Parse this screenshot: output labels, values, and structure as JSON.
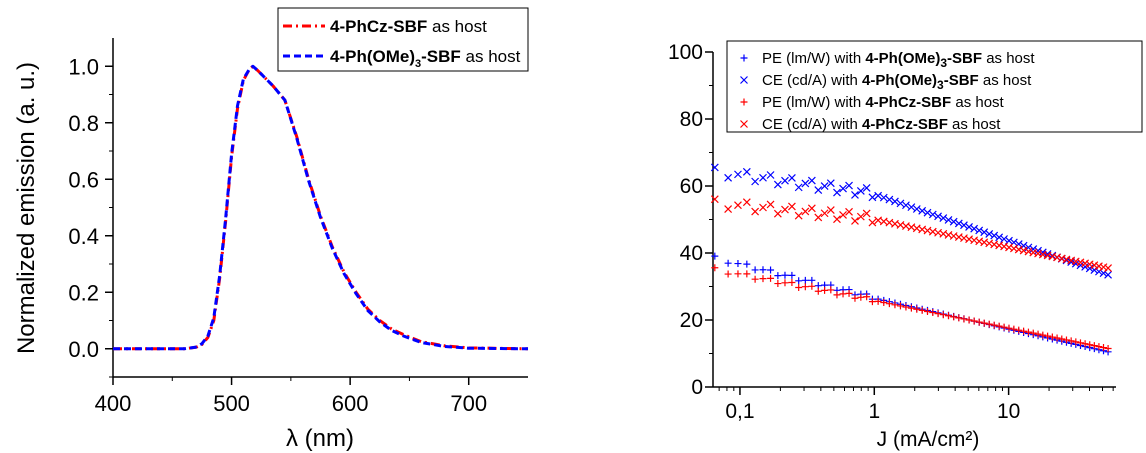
{
  "chart_data": [
    {
      "type": "line",
      "xlabel": "λ (nm)",
      "ylabel": "Normalized emission (a. u.)",
      "xlim": [
        400,
        750
      ],
      "ylim": [
        -0.1,
        1.1
      ],
      "xticks": [
        "400",
        "500",
        "600",
        "700"
      ],
      "yticks": [
        "0.0",
        "0.2",
        "0.4",
        "0.6",
        "0.8",
        "1.0"
      ],
      "legend_position": "top-right",
      "series": [
        {
          "name": "4-PhCz-SBF as host",
          "legend_bold": "4-PhCz-SBF",
          "legend_rest": " as host",
          "color": "#ff0000",
          "style": "dash-dot",
          "x": [
            400,
            460,
            470,
            475,
            480,
            485,
            490,
            495,
            500,
            505,
            510,
            515,
            518,
            522,
            528,
            535,
            545,
            555,
            565,
            575,
            585,
            595,
            605,
            615,
            625,
            635,
            645,
            660,
            680,
            700,
            750
          ],
          "y": [
            0.0,
            0.0,
            0.005,
            0.015,
            0.04,
            0.1,
            0.25,
            0.45,
            0.68,
            0.85,
            0.95,
            0.99,
            1.0,
            0.985,
            0.96,
            0.93,
            0.88,
            0.75,
            0.6,
            0.47,
            0.36,
            0.27,
            0.2,
            0.14,
            0.1,
            0.07,
            0.05,
            0.025,
            0.01,
            0.003,
            0.0
          ]
        },
        {
          "name": "4-Ph(OMe)3-SBF as host",
          "legend_bold": "4-Ph(OMe)",
          "legend_sub": "3",
          "legend_bold2": "-SBF",
          "legend_rest": " as host",
          "color": "#0000ff",
          "style": "dash",
          "x": [
            400,
            460,
            470,
            475,
            480,
            485,
            490,
            495,
            500,
            505,
            510,
            515,
            518,
            522,
            528,
            535,
            545,
            555,
            565,
            575,
            585,
            595,
            605,
            615,
            625,
            635,
            645,
            660,
            680,
            700,
            750
          ],
          "y": [
            0.0,
            0.0,
            0.006,
            0.018,
            0.045,
            0.11,
            0.26,
            0.46,
            0.69,
            0.86,
            0.955,
            0.99,
            1.0,
            0.985,
            0.96,
            0.93,
            0.88,
            0.745,
            0.595,
            0.465,
            0.355,
            0.265,
            0.195,
            0.135,
            0.095,
            0.065,
            0.045,
            0.022,
            0.008,
            0.002,
            0.0
          ]
        }
      ]
    },
    {
      "type": "scatter",
      "xlabel": "J (mA/cm²)",
      "ylabel": "",
      "xscale": "log",
      "xlim": [
        0.063,
        63
      ],
      "ylim": [
        0,
        100
      ],
      "xticks": [
        "0,1",
        "1",
        "10"
      ],
      "yticks": [
        "0",
        "20",
        "40",
        "60",
        "80",
        "100"
      ],
      "legend_position": "top-right",
      "series": [
        {
          "name": "PE (lm/W) with 4-Ph(OMe)3-SBF as host",
          "legend_pre": "PE (lm/W) with ",
          "legend_bold": "4-Ph(OMe)",
          "legend_sub": "3",
          "legend_bold2": "-SBF",
          "legend_rest": " as host",
          "color": "#0000ff",
          "marker": "plus",
          "y_start": 38.5,
          "y_mid": 26.5,
          "y_end": 10.5
        },
        {
          "name": "CE (cd/A) with 4-Ph(OMe)3-SBF as host",
          "legend_pre": "CE (cd/A) with ",
          "legend_bold": "4-Ph(OMe)",
          "legend_sub": "3",
          "legend_bold2": "-SBF",
          "legend_rest": " as host",
          "color": "#0000ff",
          "marker": "x",
          "y_start": 64,
          "y_mid": 57.5,
          "y_end": 33.5
        },
        {
          "name": "PE (lm/W) with 4-PhCz-SBF as host",
          "legend_pre": "PE (lm/W) with ",
          "legend_bold": "4-PhCz-SBF",
          "legend_rest": " as host",
          "color": "#ff0000",
          "marker": "plus",
          "y_start": 35,
          "y_mid": 25.8,
          "y_end": 11.5
        },
        {
          "name": "CE (cd/A) with 4-PhCz-SBF as host",
          "legend_pre": "CE (cd/A) with ",
          "legend_bold": "4-PhCz-SBF",
          "legend_rest": " as host",
          "color": "#ff0000",
          "marker": "x",
          "y_start": 54.5,
          "y_mid": 50,
          "y_end": 35.5
        }
      ]
    }
  ]
}
